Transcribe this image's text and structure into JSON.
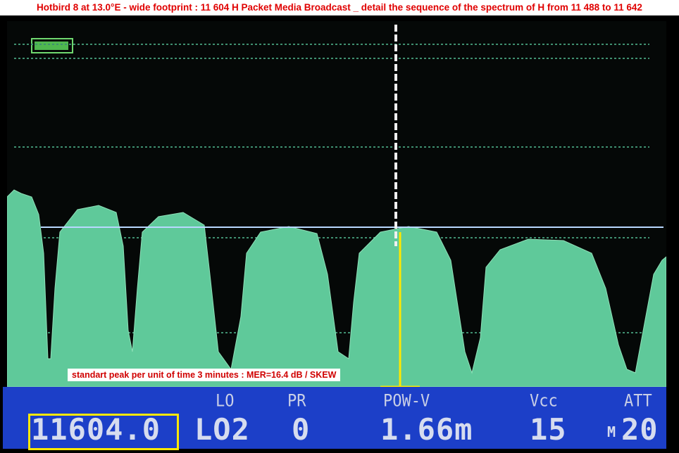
{
  "caption": "Hotbird 8 at 13.0°E - wide footprint :  11 604 H Packet Media Broadcast _ detail the sequence of the spectrum of H from 11 488 to 11 642",
  "annotation": "standart peak per unit of time 3 minutes : MER=16.4 dB / SKEW",
  "colors": {
    "trace": "#5fc99a",
    "status_bar": "#1c3fc8",
    "highlight": "#ffe800",
    "caption_text": "#e00000"
  },
  "status": {
    "frequency": "11604.0",
    "lo_label": "LO",
    "lo_value": "LO2",
    "pr_label": "PR",
    "pr_value": "0",
    "pow_label": "POW-V",
    "pow_value": "1.66m",
    "vcc_label": "Vcc",
    "vcc_value": "15",
    "att_label": "ATT",
    "att_prefix": "M",
    "att_value": "20"
  },
  "icons": {
    "battery": "battery-icon",
    "marker": "cursor-marker"
  }
}
